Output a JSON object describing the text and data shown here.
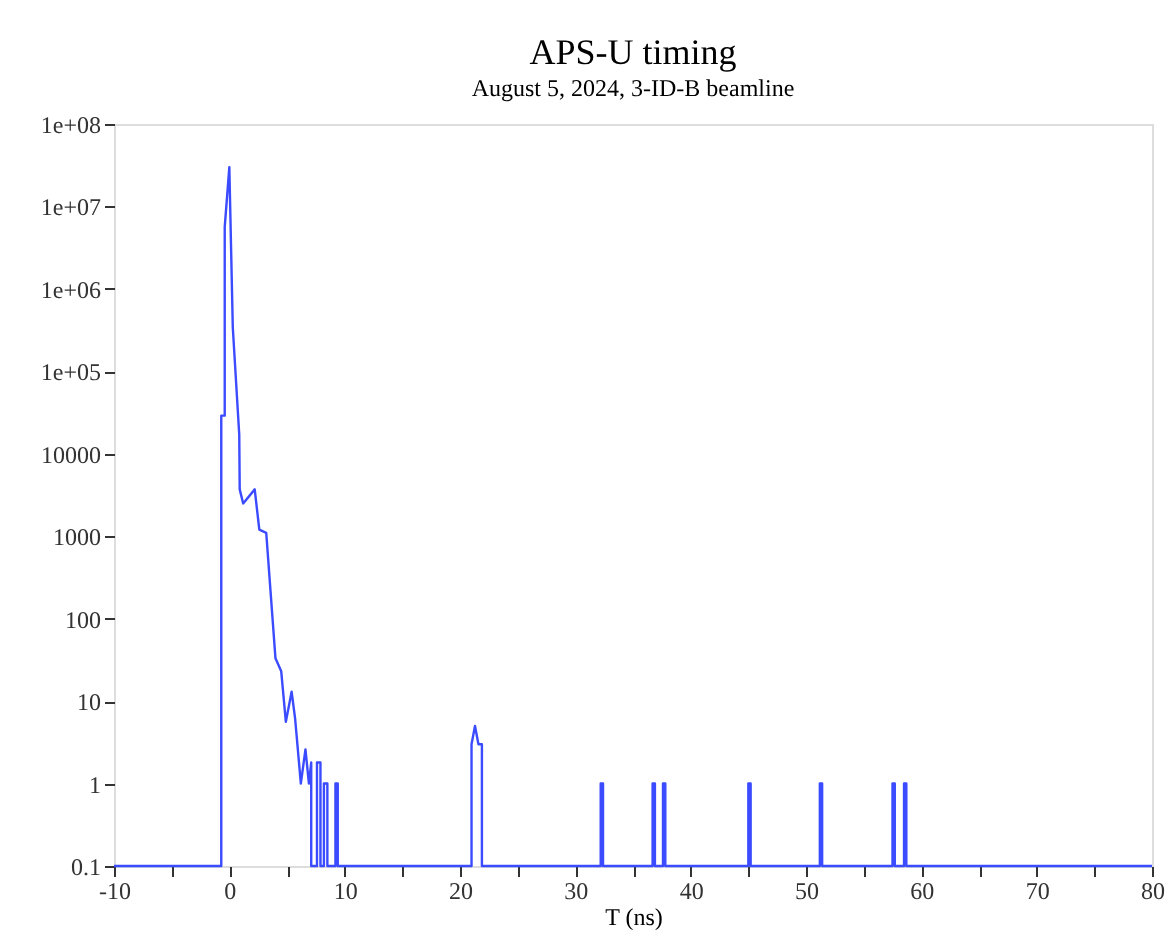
{
  "chart_data": {
    "type": "line",
    "title": "APS-U timing",
    "subtitle": "August 5, 2024, 3-ID-B beamline",
    "xlabel": "T (ns)",
    "series": [
      {
        "color": "#3b4bff",
        "x": [
          -10,
          -0.7,
          -0.7,
          -0.4,
          -0.4,
          0,
          0.3,
          0.86,
          0.9,
          1.2,
          2.2,
          2.6,
          3.2,
          4.0,
          4.5,
          4.9,
          5.4,
          5.7,
          6.2,
          6.6,
          6.9,
          7.1,
          7.1,
          7.6,
          7.6,
          7.9,
          7.9,
          8.2,
          8.2,
          8.5,
          8.5,
          9.2,
          9.2,
          9.4,
          9.4,
          21.0,
          21.0,
          21.3,
          21.6,
          21.9,
          21.9,
          32.2,
          32.2,
          32.4,
          32.4,
          36.7,
          36.7,
          36.9,
          36.9,
          37.6,
          37.6,
          37.8,
          37.8,
          45.0,
          45.0,
          45.2,
          45.2,
          51.2,
          51.2,
          51.4,
          51.4,
          57.5,
          57.5,
          57.7,
          57.7,
          58.5,
          58.5,
          58.7,
          58.7,
          80
        ],
        "values": [
          0.1,
          0.1,
          29000,
          29000,
          5600000,
          30000000,
          340000,
          17000,
          3700,
          2500,
          3700,
          1200,
          1100,
          33,
          23,
          5.6,
          13,
          6.2,
          1,
          2.6,
          1,
          1.8,
          0.1,
          0.1,
          1.8,
          1.8,
          0.1,
          0.1,
          1,
          1,
          0.1,
          0.1,
          1,
          1,
          0.1,
          0.1,
          3,
          5,
          3,
          3,
          0.1,
          0.1,
          1,
          1,
          0.1,
          0.1,
          1,
          1,
          0.1,
          0.1,
          1,
          1,
          0.1,
          0.1,
          1,
          1,
          0.1,
          0.1,
          1,
          1,
          0.1,
          0.1,
          1,
          1,
          0.1,
          0.1,
          1,
          1,
          0.1,
          0.1
        ]
      }
    ],
    "log": "y",
    "grid": false,
    "marker": "none",
    "line_style": "solid",
    "xlim": [
      -10,
      80
    ],
    "xticks": [
      -10,
      {
        "value": -5,
        "label": null
      },
      0,
      {
        "value": 5,
        "label": null
      },
      10,
      {
        "value": 15,
        "label": null
      },
      20,
      {
        "value": 25,
        "label": null
      },
      30,
      {
        "value": 35,
        "label": null
      },
      40,
      {
        "value": 45,
        "label": null
      },
      50,
      {
        "value": 55,
        "label": null
      },
      60,
      {
        "value": 65,
        "label": null
      },
      70,
      {
        "value": 75,
        "label": null
      },
      80
    ],
    "ylim": [
      0.1,
      100000000
    ],
    "yticks": [
      0.1,
      1,
      10,
      100,
      1000,
      10000,
      {
        "value": 100000,
        "label": "1e+05"
      },
      {
        "value": 1000000,
        "label": "1e+06"
      },
      {
        "value": 10000000,
        "label": "1e+07"
      },
      {
        "value": 100000000,
        "label": "1e+08"
      }
    ]
  }
}
